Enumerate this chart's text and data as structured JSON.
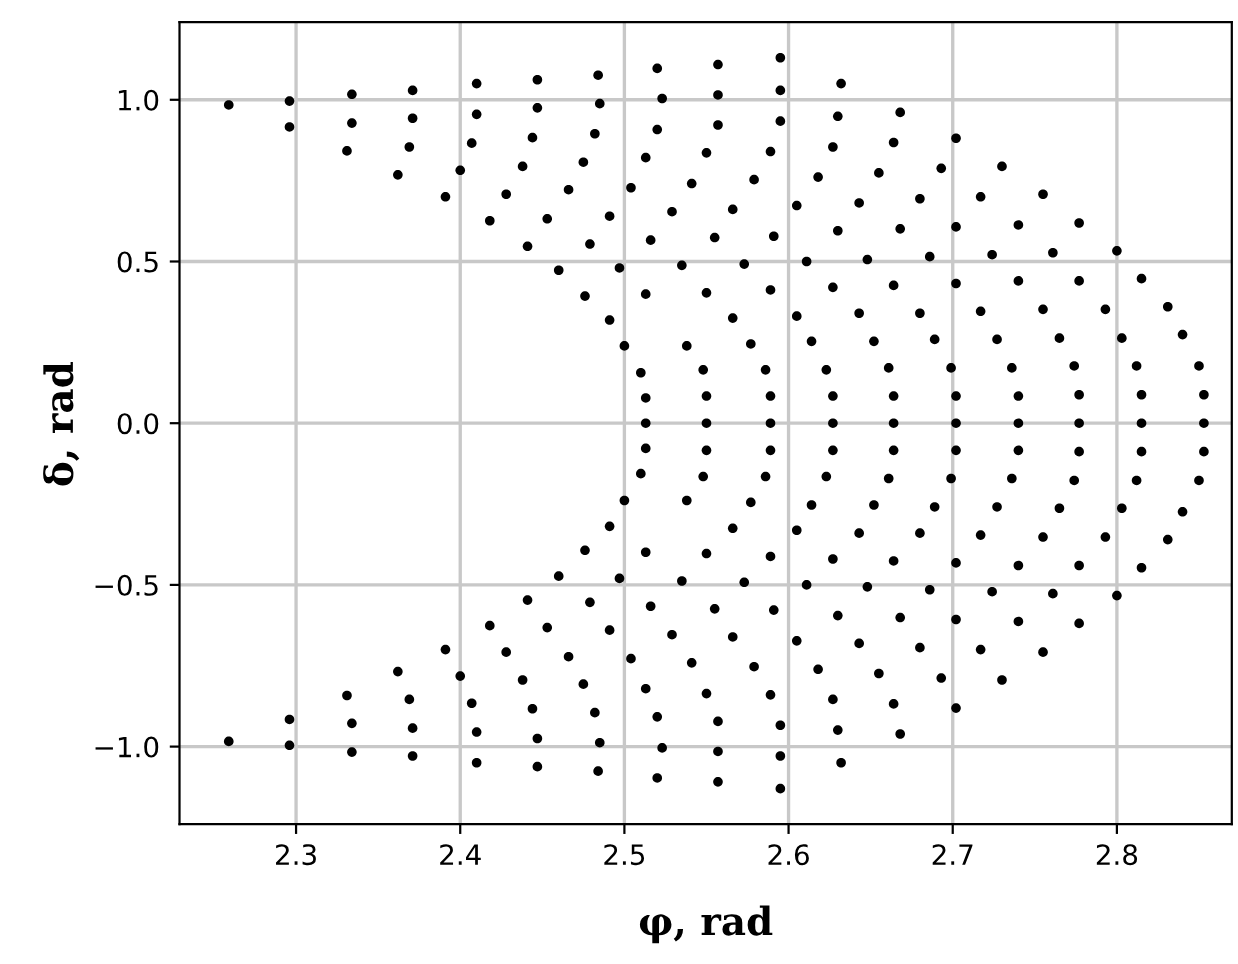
{
  "chart_data": {
    "type": "scatter",
    "xlabel": "φ, rad",
    "ylabel": "δ, rad",
    "xlim": [
      2.229,
      2.87
    ],
    "ylim": [
      -1.24,
      1.24
    ],
    "xticks": [
      2.3,
      2.4,
      2.5,
      2.6,
      2.7,
      2.8
    ],
    "yticks": [
      {
        "value": -1.0,
        "label": "−1.0"
      },
      {
        "value": -0.5,
        "label": "−0.5"
      },
      {
        "value": 0.0,
        "label": "0.0"
      },
      {
        "value": 0.5,
        "label": "0.5"
      },
      {
        "value": 1.0,
        "label": "1.0"
      }
    ],
    "grid": true,
    "marker": "circle",
    "series": [
      {
        "color": "#000000",
        "x": [
          2.259,
          2.296,
          2.296,
          2.334,
          2.334,
          2.331,
          2.371,
          2.371,
          2.369,
          2.362,
          2.41,
          2.41,
          2.407,
          2.4,
          2.391,
          2.447,
          2.447,
          2.444,
          2.438,
          2.428,
          2.418,
          2.484,
          2.485,
          2.482,
          2.475,
          2.466,
          2.453,
          2.441,
          2.46,
          2.52,
          2.523,
          2.52,
          2.513,
          2.504,
          2.491,
          2.479,
          2.497,
          2.476,
          2.491,
          2.5,
          2.51,
          2.513,
          2.513,
          2.513,
          2.516,
          2.529,
          2.557,
          2.557,
          2.557,
          2.55,
          2.541,
          2.555,
          2.535,
          2.55,
          2.538,
          2.548,
          2.55,
          2.55,
          2.595,
          2.595,
          2.595,
          2.589,
          2.579,
          2.566,
          2.591,
          2.573,
          2.589,
          2.566,
          2.577,
          2.586,
          2.589,
          2.589,
          2.632,
          2.63,
          2.627,
          2.618,
          2.605,
          2.63,
          2.611,
          2.627,
          2.605,
          2.614,
          2.623,
          2.627,
          2.627,
          2.668,
          2.664,
          2.655,
          2.643,
          2.668,
          2.648,
          2.664,
          2.643,
          2.652,
          2.661,
          2.664,
          2.664,
          2.702,
          2.693,
          2.68,
          2.702,
          2.686,
          2.702,
          2.68,
          2.689,
          2.699,
          2.702,
          2.702,
          2.73,
          2.717,
          2.74,
          2.724,
          2.74,
          2.717,
          2.727,
          2.736,
          2.74,
          2.74,
          2.755,
          2.777,
          2.761,
          2.777,
          2.755,
          2.765,
          2.774,
          2.777,
          2.777,
          2.8,
          2.815,
          2.793,
          2.803,
          2.812,
          2.815,
          2.815,
          2.831,
          2.84,
          2.85,
          2.853,
          2.853
        ],
        "values": [
          0.984,
          0.996,
          0.916,
          1.017,
          0.928,
          0.842,
          1.029,
          0.943,
          0.854,
          0.768,
          1.05,
          0.955,
          0.866,
          0.782,
          0.7,
          1.062,
          0.975,
          0.883,
          0.794,
          0.708,
          0.626,
          1.076,
          0.988,
          0.895,
          0.807,
          0.722,
          0.632,
          0.547,
          0.473,
          1.097,
          1.004,
          0.908,
          0.821,
          0.728,
          0.64,
          0.554,
          0.48,
          0.393,
          0.319,
          0.239,
          0.156,
          0.078,
          0,
          0.399,
          0.566,
          0.654,
          1.109,
          1.015,
          0.922,
          0.836,
          0.741,
          0.574,
          0.488,
          0.403,
          0.239,
          0.165,
          0.084,
          0,
          1.13,
          1.029,
          0.934,
          0.84,
          0.753,
          0.661,
          0.578,
          0.492,
          0.412,
          0.325,
          0.245,
          0.165,
          0.084,
          0,
          1.05,
          0.949,
          0.854,
          0.761,
          0.673,
          0.595,
          0.5,
          0.42,
          0.331,
          0.253,
          0.165,
          0.084,
          0,
          0.961,
          0.868,
          0.774,
          0.681,
          0.601,
          0.506,
          0.426,
          0.34,
          0.253,
          0.171,
          0.084,
          0,
          0.881,
          0.788,
          0.694,
          0.607,
          0.515,
          0.432,
          0.34,
          0.259,
          0.171,
          0.084,
          0,
          0.794,
          0.7,
          0.613,
          0.521,
          0.44,
          0.346,
          0.259,
          0.171,
          0.084,
          0,
          0.708,
          0.619,
          0.527,
          0.44,
          0.352,
          0.263,
          0.177,
          0.088,
          0,
          0.533,
          0.447,
          0.352,
          0.263,
          0.177,
          0.088,
          0,
          0.36,
          0.274,
          0.177,
          0.088,
          0
        ]
      },
      {
        "color": "#000000",
        "x": [
          2.259,
          2.296,
          2.296,
          2.334,
          2.334,
          2.331,
          2.371,
          2.371,
          2.369,
          2.362,
          2.41,
          2.41,
          2.407,
          2.4,
          2.391,
          2.447,
          2.447,
          2.444,
          2.438,
          2.428,
          2.418,
          2.484,
          2.485,
          2.482,
          2.475,
          2.466,
          2.453,
          2.441,
          2.46,
          2.52,
          2.523,
          2.52,
          2.513,
          2.504,
          2.491,
          2.479,
          2.497,
          2.476,
          2.491,
          2.5,
          2.51,
          2.513,
          2.513,
          2.516,
          2.529,
          2.557,
          2.557,
          2.557,
          2.55,
          2.541,
          2.555,
          2.535,
          2.55,
          2.538,
          2.548,
          2.55,
          2.595,
          2.595,
          2.595,
          2.589,
          2.579,
          2.566,
          2.591,
          2.573,
          2.589,
          2.566,
          2.577,
          2.586,
          2.589,
          2.632,
          2.63,
          2.627,
          2.618,
          2.605,
          2.63,
          2.611,
          2.627,
          2.605,
          2.614,
          2.623,
          2.627,
          2.668,
          2.664,
          2.655,
          2.643,
          2.668,
          2.648,
          2.664,
          2.643,
          2.652,
          2.661,
          2.664,
          2.702,
          2.693,
          2.68,
          2.702,
          2.686,
          2.702,
          2.68,
          2.689,
          2.699,
          2.702,
          2.73,
          2.717,
          2.74,
          2.724,
          2.74,
          2.717,
          2.727,
          2.736,
          2.74,
          2.755,
          2.777,
          2.761,
          2.777,
          2.755,
          2.765,
          2.774,
          2.777,
          2.8,
          2.815,
          2.793,
          2.803,
          2.812,
          2.815,
          2.831,
          2.84,
          2.85,
          2.853
        ],
        "values": [
          -0.984,
          -0.996,
          -0.916,
          -1.017,
          -0.928,
          -0.842,
          -1.029,
          -0.943,
          -0.854,
          -0.768,
          -1.05,
          -0.955,
          -0.866,
          -0.782,
          -0.7,
          -1.062,
          -0.975,
          -0.883,
          -0.794,
          -0.708,
          -0.626,
          -1.076,
          -0.988,
          -0.895,
          -0.807,
          -0.722,
          -0.632,
          -0.547,
          -0.473,
          -1.097,
          -1.004,
          -0.908,
          -0.821,
          -0.728,
          -0.64,
          -0.554,
          -0.48,
          -0.393,
          -0.319,
          -0.239,
          -0.156,
          -0.078,
          -0.399,
          -0.566,
          -0.654,
          -1.109,
          -1.015,
          -0.922,
          -0.836,
          -0.741,
          -0.574,
          -0.488,
          -0.403,
          -0.239,
          -0.165,
          -0.084,
          -1.13,
          -1.029,
          -0.934,
          -0.84,
          -0.753,
          -0.661,
          -0.578,
          -0.492,
          -0.412,
          -0.325,
          -0.245,
          -0.165,
          -0.084,
          -1.05,
          -0.949,
          -0.854,
          -0.761,
          -0.673,
          -0.595,
          -0.5,
          -0.42,
          -0.331,
          -0.253,
          -0.165,
          -0.084,
          -0.961,
          -0.868,
          -0.774,
          -0.681,
          -0.601,
          -0.506,
          -0.426,
          -0.34,
          -0.253,
          -0.171,
          -0.084,
          -0.881,
          -0.788,
          -0.694,
          -0.607,
          -0.515,
          -0.432,
          -0.34,
          -0.259,
          -0.171,
          -0.084,
          -0.794,
          -0.7,
          -0.613,
          -0.521,
          -0.44,
          -0.346,
          -0.259,
          -0.171,
          -0.084,
          -0.708,
          -0.619,
          -0.527,
          -0.44,
          -0.352,
          -0.263,
          -0.177,
          -0.088,
          -0.533,
          -0.447,
          -0.352,
          -0.263,
          -0.177,
          -0.088,
          -0.36,
          -0.274,
          -0.177,
          -0.088
        ]
      }
    ]
  }
}
